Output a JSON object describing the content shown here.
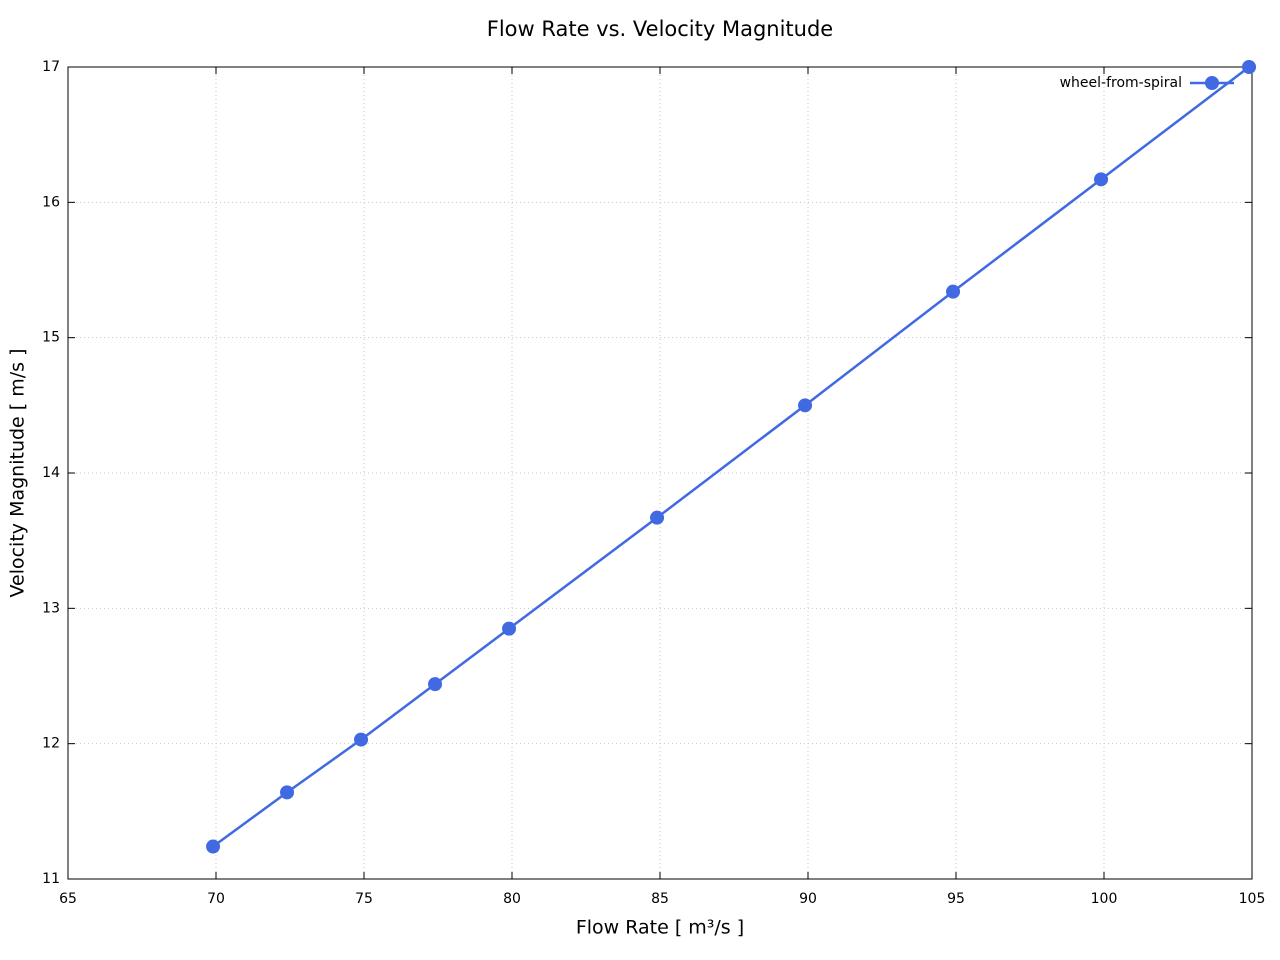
{
  "chart_data": {
    "type": "line",
    "title": "Flow Rate vs. Velocity Magnitude",
    "x_label": "Flow Rate [ m³/s ]",
    "y_label": "Velocity Magnitude [ m/s ]",
    "x": [
      69.9,
      72.4,
      74.9,
      77.4,
      79.9,
      84.9,
      89.9,
      94.9,
      99.9,
      104.9
    ],
    "series": [
      {
        "name": "wheel-from-spiral",
        "color": "#4169e1",
        "values": [
          11.24,
          11.64,
          12.03,
          12.44,
          12.85,
          13.67,
          14.5,
          15.34,
          16.17,
          17.0
        ]
      }
    ],
    "xlim": [
      65,
      105
    ],
    "xticks": [
      65,
      70,
      75,
      80,
      85,
      90,
      95,
      100,
      105
    ],
    "ylim": [
      11,
      17
    ],
    "yticks": [
      11,
      12,
      13,
      14,
      15,
      16,
      17
    ],
    "grid": true,
    "legend": "top-right"
  }
}
